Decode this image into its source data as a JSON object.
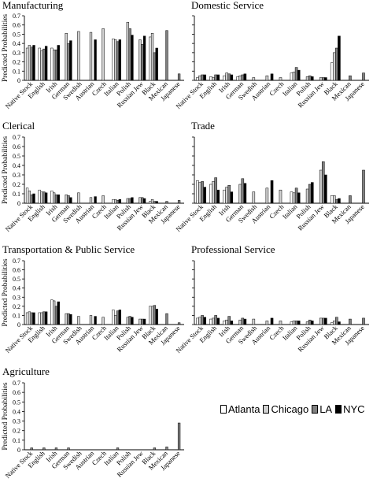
{
  "legend": {
    "items": [
      {
        "label": "Atlanta",
        "color": "#ffffff"
      },
      {
        "label": "Chicago",
        "color": "#d0d0d0"
      },
      {
        "label": "LA",
        "color": "#808080"
      },
      {
        "label": "NYC",
        "color": "#000000"
      }
    ]
  },
  "chart_data": [
    {
      "type": "bar",
      "title": "Manufacturing",
      "ylabel": "Predicted Probabilities",
      "ylim": [
        0,
        0.7
      ],
      "yticks": [
        "0",
        "0.1",
        "0.2",
        "0.3",
        "0.4",
        "0.5",
        "0.6",
        "0.7"
      ],
      "categories": [
        "Native Stock",
        "English",
        "Irish",
        "German",
        "Swedish",
        "Austrian",
        "Czech",
        "Italian",
        "Polish",
        "Russian Jew",
        "Black",
        "Mexican",
        "Japanese"
      ],
      "series": [
        {
          "name": "Atlanta",
          "values": [
            0.35,
            0.35,
            0.35,
            null,
            null,
            null,
            null,
            0.45,
            null,
            null,
            0.47,
            null,
            null
          ]
        },
        {
          "name": "Chicago",
          "values": [
            0.38,
            0.32,
            0.33,
            0.51,
            0.53,
            0.52,
            0.56,
            0.44,
            0.63,
            0.44,
            0.51,
            null,
            null
          ]
        },
        {
          "name": "LA",
          "values": [
            0.36,
            0.34,
            0.33,
            0.4,
            null,
            null,
            null,
            0.42,
            0.56,
            0.39,
            0.3,
            0.54,
            0.07
          ]
        },
        {
          "name": "NYC",
          "values": [
            0.38,
            0.37,
            0.38,
            0.43,
            null,
            0.44,
            null,
            0.44,
            0.49,
            0.48,
            0.35,
            null,
            null
          ]
        }
      ]
    },
    {
      "type": "bar",
      "title": "Domestic Service",
      "ylabel": "",
      "ylim": [
        0,
        0.7
      ],
      "yticks": [],
      "categories": [
        "Native Stock",
        "English",
        "Irish",
        "German",
        "Swedish",
        "Austrian",
        "Czech",
        "Italian",
        "Polish",
        "Russian Jew",
        "Black",
        "Mexican",
        "Japanese"
      ],
      "series": [
        {
          "name": "Atlanta",
          "values": [
            0.03,
            0.04,
            0.05,
            0.04,
            null,
            null,
            null,
            0.08,
            null,
            null,
            0.19,
            null,
            null
          ]
        },
        {
          "name": "Chicago",
          "values": [
            0.05,
            0.03,
            0.08,
            0.05,
            0.03,
            0.05,
            0.03,
            0.09,
            0.04,
            0.03,
            0.3,
            null,
            null
          ]
        },
        {
          "name": "LA",
          "values": [
            0.06,
            0.06,
            0.07,
            0.06,
            null,
            null,
            null,
            0.14,
            0.05,
            0.03,
            0.35,
            0.05,
            0.08
          ]
        },
        {
          "name": "NYC",
          "values": [
            0.06,
            0.06,
            0.06,
            0.07,
            null,
            0.07,
            null,
            0.11,
            0.04,
            0.03,
            0.48,
            null,
            null
          ]
        }
      ]
    },
    {
      "type": "bar",
      "title": "Clerical",
      "ylabel": "Predicted Probabilities",
      "ylim": [
        0,
        0.7
      ],
      "yticks": [
        "0",
        "0.1",
        "0.2",
        "0.3",
        "0.4",
        "0.5",
        "0.6",
        "0.7"
      ],
      "categories": [
        "Native Stock",
        "English",
        "Irish",
        "German",
        "Swedish",
        "Austrian",
        "Czech",
        "Italian",
        "Polish",
        "Russian Jew",
        "Black",
        "Mexican",
        "Japanese"
      ],
      "series": [
        {
          "name": "Atlanta",
          "values": [
            0.16,
            0.14,
            0.13,
            null,
            null,
            null,
            null,
            0.04,
            null,
            null,
            0.02,
            null,
            null
          ]
        },
        {
          "name": "Chicago",
          "values": [
            0.13,
            0.12,
            0.11,
            0.09,
            0.11,
            0.06,
            0.08,
            0.04,
            0.05,
            0.06,
            0.04,
            null,
            null
          ]
        },
        {
          "name": "LA",
          "values": [
            0.09,
            0.12,
            0.09,
            0.08,
            null,
            null,
            null,
            0.03,
            0.05,
            0.06,
            0.02,
            0.02,
            0.03
          ]
        },
        {
          "name": "NYC",
          "values": [
            0.1,
            0.11,
            0.09,
            0.06,
            null,
            0.07,
            null,
            0.04,
            0.06,
            0.05,
            0.02,
            null,
            null
          ]
        }
      ]
    },
    {
      "type": "bar",
      "title": "Trade",
      "ylabel": "",
      "ylim": [
        0,
        0.7
      ],
      "yticks": [],
      "categories": [
        "Native Stock",
        "English",
        "Irish",
        "German",
        "Swedish",
        "Austrian",
        "Czech",
        "Italian",
        "Polish",
        "Russian Jew",
        "Black",
        "Mexican",
        "Japanese"
      ],
      "series": [
        {
          "name": "Atlanta",
          "values": [
            0.24,
            0.2,
            0.14,
            null,
            null,
            null,
            null,
            0.12,
            null,
            null,
            0.08,
            null,
            null
          ]
        },
        {
          "name": "Chicago",
          "values": [
            0.22,
            0.23,
            0.17,
            0.2,
            0.12,
            0.16,
            0.14,
            0.11,
            0.15,
            0.35,
            0.08,
            null,
            null
          ]
        },
        {
          "name": "LA",
          "values": [
            0.23,
            0.27,
            0.19,
            0.26,
            null,
            null,
            null,
            0.16,
            0.2,
            0.44,
            0.04,
            0.08,
            0.35
          ]
        },
        {
          "name": "NYC",
          "values": [
            0.17,
            0.14,
            0.12,
            0.21,
            null,
            0.24,
            null,
            0.11,
            0.22,
            0.3,
            0.05,
            null,
            null
          ]
        }
      ]
    },
    {
      "type": "bar",
      "title": "Transportation & Public Service",
      "ylabel": "Predicted Probabilities",
      "ylim": [
        0,
        0.7
      ],
      "yticks": [
        "0",
        "0.1",
        "0.2",
        "0.3",
        "0.4",
        "0.5",
        "0.6",
        "0.7"
      ],
      "categories": [
        "Native Stock",
        "English",
        "Irish",
        "German",
        "Swedish",
        "Austrian",
        "Czech",
        "Italian",
        "Polish",
        "Russian Jew",
        "Black",
        "Mexican",
        "Japanese"
      ],
      "series": [
        {
          "name": "Atlanta",
          "values": [
            0.13,
            0.13,
            0.27,
            null,
            null,
            null,
            null,
            0.16,
            null,
            null,
            0.2,
            null,
            null
          ]
        },
        {
          "name": "Chicago",
          "values": [
            0.14,
            0.13,
            0.26,
            0.12,
            0.09,
            0.1,
            0.08,
            0.1,
            0.08,
            0.06,
            0.2,
            null,
            null
          ]
        },
        {
          "name": "LA",
          "values": [
            0.13,
            0.14,
            0.2,
            0.12,
            null,
            null,
            null,
            0.15,
            0.09,
            0.06,
            0.21,
            0.12,
            0.02
          ]
        },
        {
          "name": "NYC",
          "values": [
            0.13,
            0.14,
            0.25,
            0.11,
            null,
            0.09,
            null,
            0.16,
            0.08,
            0.06,
            0.17,
            null,
            null
          ]
        }
      ]
    },
    {
      "type": "bar",
      "title": "Professional Service",
      "ylabel": "",
      "ylim": [
        0,
        0.7
      ],
      "yticks": [],
      "categories": [
        "Native Stock",
        "English",
        "Irish",
        "German",
        "Swedish",
        "Austrian",
        "Czech",
        "Italian",
        "Polish",
        "Russian Jew",
        "Black",
        "Mexican",
        "Japanese"
      ],
      "series": [
        {
          "name": "Atlanta",
          "values": [
            0.07,
            0.06,
            0.04,
            null,
            null,
            null,
            null,
            0.03,
            null,
            null,
            0.02,
            null,
            null
          ]
        },
        {
          "name": "Chicago",
          "values": [
            0.08,
            0.07,
            0.05,
            0.05,
            0.06,
            0.04,
            0.04,
            0.04,
            0.03,
            0.07,
            0.04,
            null,
            null
          ]
        },
        {
          "name": "LA",
          "values": [
            0.1,
            0.1,
            0.09,
            0.07,
            null,
            null,
            null,
            0.04,
            0.05,
            0.07,
            0.08,
            0.06,
            0.07
          ]
        },
        {
          "name": "NYC",
          "values": [
            0.08,
            0.07,
            0.04,
            0.06,
            null,
            0.07,
            null,
            0.04,
            0.04,
            0.07,
            0.03,
            null,
            null
          ]
        }
      ]
    },
    {
      "type": "bar",
      "title": "Agriculture",
      "ylabel": "Predicted Probabilities",
      "ylim": [
        0,
        0.7
      ],
      "yticks": [
        "0",
        "0.1",
        "0.2",
        "0.3",
        "0.4",
        "0.5",
        "0.6",
        "0.7"
      ],
      "categories": [
        "Native Stock",
        "English",
        "Irish",
        "German",
        "Swedish",
        "Austrian",
        "Czech",
        "Italian",
        "Polish",
        "Russian Jew",
        "Black",
        "Mexican",
        "Japanese"
      ],
      "series": [
        {
          "name": "Atlanta",
          "values": [
            0.0,
            0.0,
            0.0,
            null,
            null,
            null,
            null,
            0.0,
            null,
            null,
            0.0,
            null,
            null
          ]
        },
        {
          "name": "Chicago",
          "values": [
            0.0,
            0.0,
            0.0,
            0.0,
            0.0,
            0.0,
            0.0,
            0.0,
            0.0,
            0.0,
            0.0,
            null,
            null
          ]
        },
        {
          "name": "LA",
          "values": [
            0.02,
            0.02,
            0.02,
            0.02,
            null,
            null,
            null,
            0.02,
            0.0,
            0.0,
            0.02,
            0.03,
            0.28
          ]
        },
        {
          "name": "NYC",
          "values": [
            0.0,
            0.0,
            0.0,
            0.0,
            null,
            0.0,
            null,
            0.0,
            0.0,
            0.0,
            0.0,
            null,
            null
          ]
        }
      ]
    }
  ]
}
